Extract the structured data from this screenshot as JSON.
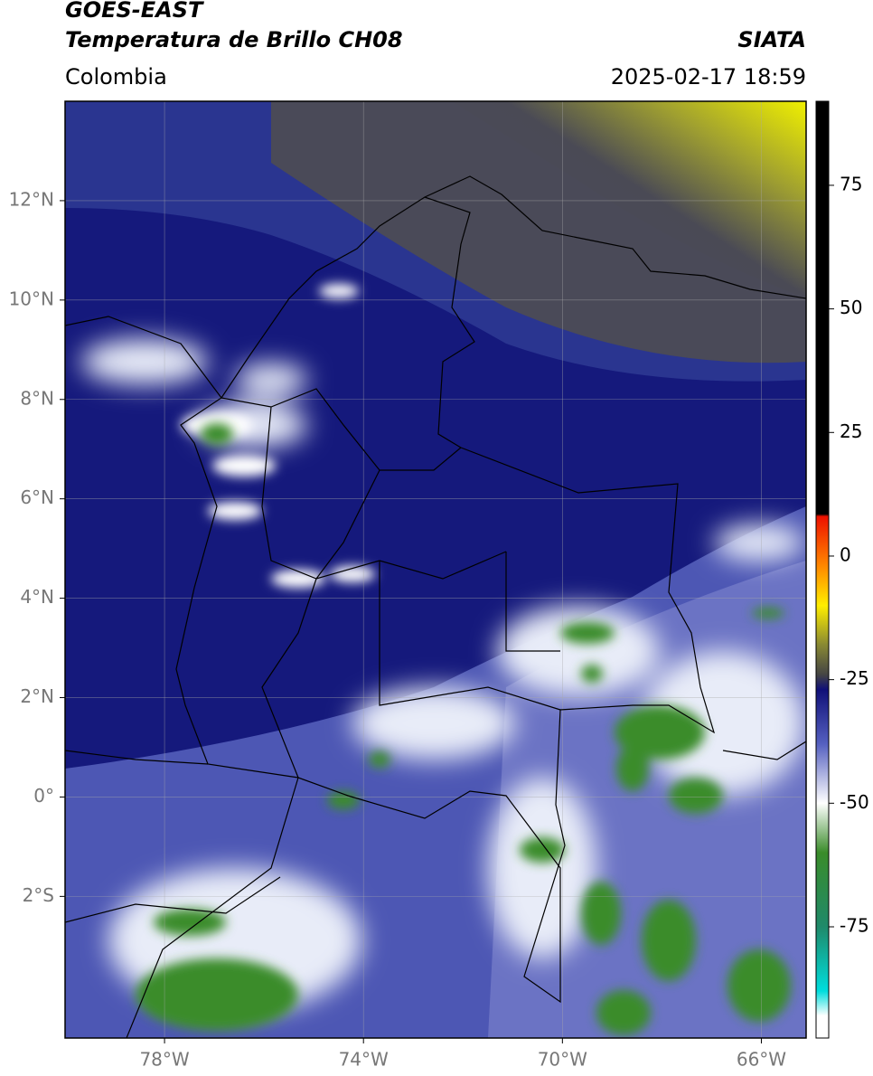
{
  "header": {
    "title": "GOES-EAST",
    "subtitle": "Temperatura de Brillo CH08",
    "source": "SIATA",
    "region": "Colombia",
    "datetime": "2025-02-17 18:59"
  },
  "map": {
    "xlim": [
      -80,
      -65.1
    ],
    "ylim": [
      -4.85,
      14
    ],
    "grid": true,
    "xticks": [
      {
        "value": -78,
        "label": "78°W"
      },
      {
        "value": -74,
        "label": "74°W"
      },
      {
        "value": -70,
        "label": "70°W"
      },
      {
        "value": -66,
        "label": "66°W"
      }
    ],
    "yticks": [
      {
        "value": 12,
        "label": "12°N"
      },
      {
        "value": 10,
        "label": "10°N"
      },
      {
        "value": 8,
        "label": "8°N"
      },
      {
        "value": 6,
        "label": "6°N"
      },
      {
        "value": 4,
        "label": "4°N"
      },
      {
        "value": 2,
        "label": "2°N"
      },
      {
        "value": 0,
        "label": "0°"
      },
      {
        "value": -2,
        "label": "2°S"
      }
    ]
  },
  "colorbar": {
    "lim": [
      -97.5,
      92
    ],
    "ticks": [
      75,
      50,
      25,
      0,
      -25,
      -50,
      -75
    ],
    "stops": [
      {
        "value": 92,
        "color": "#000000"
      },
      {
        "value": 8.5,
        "color": "#000000"
      },
      {
        "value": 8,
        "color": "#ee1100"
      },
      {
        "value": -2,
        "color": "#ff8800"
      },
      {
        "value": -10,
        "color": "#ffee00"
      },
      {
        "value": -18,
        "color": "#888833"
      },
      {
        "value": -24,
        "color": "#444444"
      },
      {
        "value": -27,
        "color": "#101078"
      },
      {
        "value": -38,
        "color": "#5560c0"
      },
      {
        "value": -50,
        "color": "#ffffff"
      },
      {
        "value": -60,
        "color": "#3a8c2a"
      },
      {
        "value": -75,
        "color": "#1f8a6a"
      },
      {
        "value": -88,
        "color": "#00dddd"
      },
      {
        "value": -93,
        "color": "#ffffff"
      },
      {
        "value": -97.5,
        "color": "#ffffff"
      }
    ]
  }
}
